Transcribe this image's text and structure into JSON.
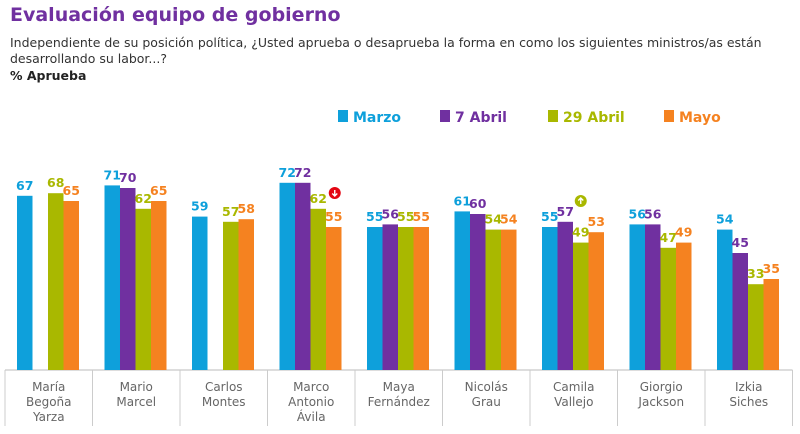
{
  "title": "Evaluación equipo de gobierno",
  "subtitle": "Independiente de su posición política, ¿Usted aprueba o desaprueba la forma en como los siguientes ministros/as están desarrollando su labor...?",
  "unit_label": "% Aprueba",
  "chart_data": {
    "type": "bar",
    "legend_position": "top-right",
    "grid": false,
    "ylim": [
      0,
      75
    ],
    "categories": [
      "María Begoña Yarza",
      "Mario Marcel",
      "Carlos Montes",
      "Marco Antonio Ávila",
      "Maya Fernández",
      "Nicolás Grau",
      "Camila Vallejo",
      "Giorgio Jackson",
      "Izkia Siches"
    ],
    "category_lines": [
      [
        "María",
        "Begoña",
        "Yarza"
      ],
      [
        "Mario",
        "Marcel"
      ],
      [
        "Carlos",
        "Montes"
      ],
      [
        "Marco",
        "Antonio",
        "Ávila"
      ],
      [
        "Maya",
        "Fernández"
      ],
      [
        "Nicolás",
        "Grau"
      ],
      [
        "Camila",
        "Vallejo"
      ],
      [
        "Giorgio",
        "Jackson"
      ],
      [
        "Izkia",
        "Siches"
      ]
    ],
    "series": [
      {
        "name": "Marzo",
        "color": "#0ea0db",
        "values": [
          67,
          71,
          59,
          72,
          55,
          61,
          55,
          56,
          54
        ]
      },
      {
        "name": "7 Abril",
        "color": "#7030a0",
        "values": [
          null,
          70,
          null,
          72,
          56,
          60,
          57,
          56,
          45
        ]
      },
      {
        "name": "29 Abril",
        "color": "#a9b800",
        "values": [
          68,
          62,
          57,
          62,
          55,
          54,
          49,
          47,
          33
        ]
      },
      {
        "name": "Mayo",
        "color": "#f58220",
        "values": [
          65,
          65,
          58,
          55,
          55,
          54,
          53,
          49,
          35
        ]
      }
    ],
    "annotations": [
      {
        "category": "Marco Antonio Ávila",
        "icon": "arrow-down-icon",
        "color": "#e30613"
      },
      {
        "category": "Camila Vallejo",
        "icon": "arrow-up-icon",
        "color": "#a9b800"
      }
    ]
  }
}
